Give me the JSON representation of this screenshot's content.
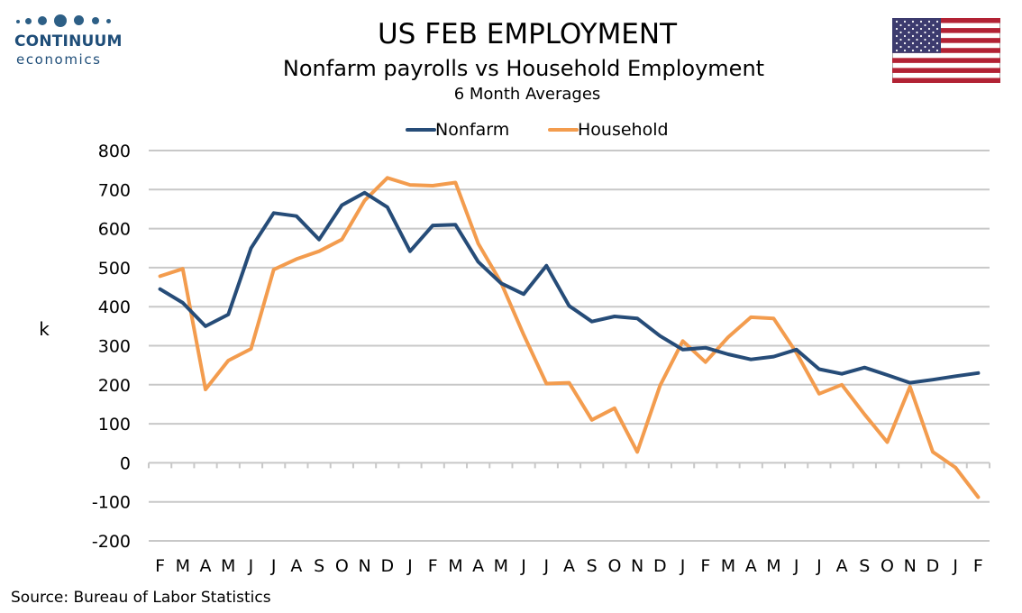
{
  "logo": {
    "name": "CONTINUUM",
    "sub": "economics"
  },
  "header": {
    "title": "US FEB EMPLOYMENT",
    "subtitle": "Nonfarm payrolls vs Household Employment",
    "subtitle2": "6 Month Averages"
  },
  "source": "Source: Bureau of Labor Statistics",
  "flag_icon": "us-flag-icon",
  "colors": {
    "nonfarm": "#264c78",
    "household": "#f39c4e",
    "grid": "#c8c8c8",
    "logo": "#1f4e79"
  },
  "chart_data": {
    "type": "line",
    "ylabel": "k",
    "ylim": [
      -200,
      800
    ],
    "yticks": [
      -200,
      -100,
      0,
      100,
      200,
      300,
      400,
      500,
      600,
      700,
      800
    ],
    "grid": true,
    "legend_position": "top",
    "categories": [
      "F",
      "M",
      "A",
      "M",
      "J",
      "J",
      "A",
      "S",
      "O",
      "N",
      "D",
      "J",
      "F",
      "M",
      "A",
      "M",
      "J",
      "J",
      "A",
      "S",
      "O",
      "N",
      "D",
      "J",
      "F",
      "M",
      "A",
      "M",
      "J",
      "J",
      "A",
      "S",
      "O",
      "N",
      "D",
      "J",
      "F"
    ],
    "series": [
      {
        "name": "Nonfarm",
        "color": "#264c78",
        "values": [
          445,
          410,
          350,
          380,
          550,
          640,
          632,
          572,
          660,
          692,
          655,
          542,
          608,
          610,
          515,
          460,
          432,
          505,
          402,
          362,
          375,
          370,
          325,
          290,
          295,
          278,
          265,
          272,
          290,
          240,
          228,
          244,
          225,
          205,
          213,
          222,
          230
        ]
      },
      {
        "name": "Household",
        "color": "#f39c4e",
        "values": [
          478,
          497,
          188,
          262,
          292,
          495,
          522,
          542,
          572,
          672,
          730,
          712,
          710,
          718,
          562,
          462,
          328,
          203,
          205,
          110,
          140,
          28,
          198,
          312,
          258,
          322,
          373,
          370,
          282,
          177,
          200,
          124,
          53,
          195,
          28,
          -12,
          -88
        ]
      }
    ]
  }
}
